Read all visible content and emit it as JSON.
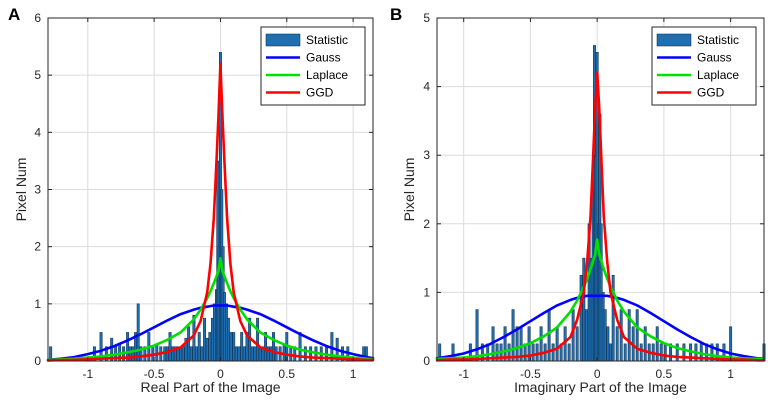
{
  "colors": {
    "bar_fill": "#1f6fb2",
    "bar_edge": "#0c2a45",
    "gauss": "#0000ff",
    "laplace": "#00e000",
    "ggd": "#ff0000",
    "grid": "#dcdcdc",
    "axis": "#262626"
  },
  "chart_data": [
    {
      "panel_label": "A",
      "type": "bar",
      "xlabel": "Real Part of the Image",
      "ylabel": "Pixel Num",
      "xlim": [
        -1.3,
        1.15
      ],
      "ylim": [
        0,
        6
      ],
      "xticks": [
        -1,
        -0.5,
        0,
        0.5,
        1
      ],
      "xtick_labels": [
        "-1",
        "-0.5",
        "0",
        "0.5",
        "1"
      ],
      "yticks": [
        0,
        1,
        2,
        3,
        4,
        5,
        6
      ],
      "ytick_labels": [
        "0",
        "1",
        "2",
        "3",
        "4",
        "5",
        "6"
      ],
      "grid": true,
      "legend": {
        "position": "top-right",
        "entries": [
          "Statistic",
          "Gauss",
          "Laplace",
          "GGD"
        ]
      },
      "bar_width": 0.013,
      "histogram": {
        "x": [
          -1.28,
          -0.95,
          -0.9,
          -0.86,
          -0.82,
          -0.79,
          -0.76,
          -0.73,
          -0.7,
          -0.68,
          -0.66,
          -0.64,
          -0.62,
          -0.6,
          -0.57,
          -0.54,
          -0.51,
          -0.48,
          -0.45,
          -0.42,
          -0.4,
          -0.38,
          -0.36,
          -0.34,
          -0.32,
          -0.3,
          -0.28,
          -0.26,
          -0.24,
          -0.22,
          -0.2,
          -0.18,
          -0.16,
          -0.14,
          -0.12,
          -0.1,
          -0.08,
          -0.06,
          -0.045,
          -0.03,
          -0.02,
          -0.01,
          0.0,
          0.01,
          0.02,
          0.03,
          0.045,
          0.06,
          0.08,
          0.1,
          0.12,
          0.14,
          0.16,
          0.18,
          0.2,
          0.22,
          0.24,
          0.26,
          0.28,
          0.3,
          0.32,
          0.34,
          0.36,
          0.38,
          0.4,
          0.42,
          0.45,
          0.48,
          0.5,
          0.53,
          0.56,
          0.6,
          0.64,
          0.68,
          0.72,
          0.76,
          0.8,
          0.84,
          0.88,
          0.92,
          0.96,
          1.08,
          1.1
        ],
        "values": [
          0.25,
          0.25,
          0.5,
          0.25,
          0.4,
          0.25,
          0.3,
          0.25,
          0.5,
          0.25,
          0.25,
          0.5,
          1.0,
          0.25,
          0.25,
          0.5,
          0.25,
          0.3,
          0.25,
          0.25,
          0.25,
          0.5,
          0.25,
          0.25,
          0.25,
          0.25,
          0.25,
          0.4,
          0.6,
          0.25,
          0.8,
          0.25,
          0.5,
          0.25,
          0.75,
          0.4,
          0.5,
          0.75,
          1.0,
          1.25,
          3.5,
          2.0,
          5.4,
          3.0,
          2.0,
          1.2,
          1.0,
          0.75,
          0.5,
          0.5,
          0.25,
          0.25,
          0.5,
          0.25,
          0.5,
          0.75,
          0.25,
          0.25,
          0.75,
          0.25,
          0.25,
          0.5,
          0.25,
          0.25,
          0.5,
          0.25,
          0.25,
          0.3,
          0.5,
          0.25,
          0.25,
          0.5,
          0.25,
          0.25,
          0.25,
          0.25,
          0.25,
          0.5,
          0.4,
          0.25,
          0.25,
          0.25,
          0.25
        ]
      },
      "curves": {
        "x": [
          -1.3,
          -1.2,
          -1.1,
          -1.0,
          -0.9,
          -0.8,
          -0.7,
          -0.6,
          -0.5,
          -0.4,
          -0.3,
          -0.2,
          -0.15,
          -0.1,
          -0.075,
          -0.05,
          -0.03,
          -0.015,
          0.0,
          0.015,
          0.03,
          0.05,
          0.075,
          0.1,
          0.15,
          0.2,
          0.3,
          0.4,
          0.5,
          0.6,
          0.7,
          0.8,
          0.9,
          1.0,
          1.1,
          1.15
        ],
        "gauss": [
          0.02,
          0.04,
          0.07,
          0.12,
          0.18,
          0.26,
          0.36,
          0.47,
          0.59,
          0.71,
          0.82,
          0.9,
          0.93,
          0.95,
          0.96,
          0.97,
          0.97,
          0.97,
          0.97,
          0.97,
          0.97,
          0.97,
          0.96,
          0.95,
          0.93,
          0.9,
          0.82,
          0.71,
          0.59,
          0.47,
          0.36,
          0.26,
          0.18,
          0.12,
          0.07,
          0.05
        ],
        "laplace": [
          0.02,
          0.03,
          0.04,
          0.06,
          0.08,
          0.11,
          0.15,
          0.2,
          0.27,
          0.37,
          0.5,
          0.73,
          0.9,
          1.1,
          1.22,
          1.36,
          1.48,
          1.58,
          1.8,
          1.58,
          1.48,
          1.36,
          1.22,
          1.1,
          0.9,
          0.73,
          0.5,
          0.37,
          0.27,
          0.2,
          0.15,
          0.11,
          0.08,
          0.06,
          0.04,
          0.03
        ],
        "ggd": [
          0.01,
          0.02,
          0.02,
          0.03,
          0.04,
          0.05,
          0.06,
          0.08,
          0.11,
          0.16,
          0.24,
          0.45,
          0.7,
          1.2,
          1.7,
          2.5,
          3.5,
          4.3,
          5.2,
          4.3,
          3.5,
          2.5,
          1.7,
          1.2,
          0.7,
          0.45,
          0.24,
          0.16,
          0.11,
          0.08,
          0.06,
          0.05,
          0.04,
          0.03,
          0.02,
          0.02
        ]
      }
    },
    {
      "panel_label": "B",
      "type": "bar",
      "xlabel": "Imaginary Part of the Image",
      "ylabel": "Pixel Num",
      "xlim": [
        -1.2,
        1.25
      ],
      "ylim": [
        0,
        5
      ],
      "xticks": [
        -1,
        -0.5,
        0,
        0.5,
        1
      ],
      "xtick_labels": [
        "-1",
        "-0.5",
        "0",
        "0.5",
        "1"
      ],
      "yticks": [
        0,
        1,
        2,
        3,
        4,
        5
      ],
      "ytick_labels": [
        "0",
        "1",
        "2",
        "3",
        "4",
        "5"
      ],
      "grid": true,
      "legend": {
        "position": "top-right",
        "entries": [
          "Statistic",
          "Gauss",
          "Laplace",
          "GGD"
        ]
      },
      "bar_width": 0.013,
      "histogram": {
        "x": [
          -1.18,
          -1.08,
          -0.95,
          -0.9,
          -0.86,
          -0.82,
          -0.78,
          -0.75,
          -0.72,
          -0.69,
          -0.66,
          -0.63,
          -0.6,
          -0.57,
          -0.54,
          -0.51,
          -0.48,
          -0.45,
          -0.42,
          -0.39,
          -0.36,
          -0.33,
          -0.3,
          -0.27,
          -0.24,
          -0.21,
          -0.18,
          -0.15,
          -0.12,
          -0.1,
          -0.08,
          -0.06,
          -0.045,
          -0.03,
          -0.02,
          -0.01,
          0.0,
          0.01,
          0.02,
          0.03,
          0.045,
          0.06,
          0.08,
          0.1,
          0.12,
          0.15,
          0.18,
          0.21,
          0.24,
          0.27,
          0.3,
          0.33,
          0.36,
          0.39,
          0.42,
          0.45,
          0.48,
          0.51,
          0.55,
          0.6,
          0.65,
          0.7,
          0.74,
          0.78,
          0.82,
          0.86,
          0.9,
          0.95,
          1.0,
          1.25
        ],
        "values": [
          0.25,
          0.25,
          0.25,
          0.75,
          0.25,
          0.25,
          0.5,
          0.25,
          0.25,
          0.5,
          0.25,
          0.75,
          0.5,
          0.5,
          0.25,
          0.5,
          0.25,
          0.25,
          0.5,
          0.25,
          0.75,
          0.25,
          0.5,
          0.25,
          0.5,
          0.25,
          0.75,
          0.5,
          1.25,
          1.5,
          0.75,
          2.0,
          1.5,
          2.5,
          4.6,
          3.0,
          4.5,
          2.0,
          3.6,
          2.0,
          1.0,
          0.75,
          0.5,
          0.25,
          1.25,
          0.5,
          0.75,
          0.25,
          0.75,
          0.5,
          0.75,
          0.25,
          0.5,
          0.25,
          0.25,
          0.5,
          0.25,
          0.25,
          0.25,
          0.25,
          0.25,
          0.25,
          0.25,
          0.25,
          0.25,
          0.25,
          0.25,
          0.25,
          0.5,
          0.25
        ]
      },
      "curves": {
        "x": [
          -1.2,
          -1.1,
          -1.0,
          -0.9,
          -0.8,
          -0.7,
          -0.6,
          -0.5,
          -0.4,
          -0.3,
          -0.2,
          -0.15,
          -0.1,
          -0.075,
          -0.05,
          -0.03,
          -0.015,
          0.0,
          0.015,
          0.03,
          0.05,
          0.075,
          0.1,
          0.15,
          0.2,
          0.3,
          0.4,
          0.5,
          0.6,
          0.7,
          0.8,
          0.9,
          1.0,
          1.1,
          1.2,
          1.25
        ],
        "gauss": [
          0.04,
          0.07,
          0.11,
          0.17,
          0.25,
          0.35,
          0.46,
          0.58,
          0.7,
          0.81,
          0.89,
          0.92,
          0.94,
          0.95,
          0.95,
          0.95,
          0.95,
          0.95,
          0.95,
          0.95,
          0.95,
          0.95,
          0.94,
          0.92,
          0.89,
          0.81,
          0.7,
          0.58,
          0.46,
          0.35,
          0.25,
          0.17,
          0.11,
          0.07,
          0.04,
          0.03
        ],
        "laplace": [
          0.03,
          0.04,
          0.05,
          0.07,
          0.1,
          0.14,
          0.19,
          0.26,
          0.36,
          0.49,
          0.72,
          0.88,
          1.08,
          1.2,
          1.34,
          1.46,
          1.56,
          1.77,
          1.56,
          1.46,
          1.34,
          1.2,
          1.08,
          0.88,
          0.72,
          0.49,
          0.36,
          0.26,
          0.19,
          0.14,
          0.1,
          0.07,
          0.05,
          0.04,
          0.03,
          0.02
        ],
        "ggd": [
          0.01,
          0.02,
          0.02,
          0.03,
          0.04,
          0.05,
          0.06,
          0.08,
          0.12,
          0.18,
          0.35,
          0.6,
          1.0,
          1.45,
          2.1,
          3.0,
          3.7,
          4.2,
          3.7,
          3.0,
          2.1,
          1.45,
          1.0,
          0.6,
          0.35,
          0.18,
          0.12,
          0.08,
          0.06,
          0.05,
          0.04,
          0.03,
          0.02,
          0.02,
          0.01,
          0.01
        ]
      }
    }
  ]
}
